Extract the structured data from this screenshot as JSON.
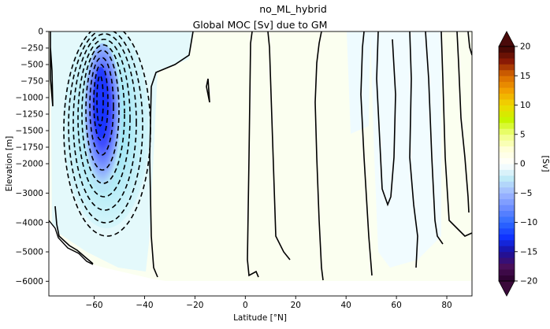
{
  "figure": {
    "suptitle": "no_ML_hybrid"
  },
  "chart_data": {
    "type": "heatmap",
    "title": "Global MOC [Sv] due to GM",
    "xlabel": "Latitude [°N]",
    "ylabel": "Elevation [m]",
    "xlim": [
      -78,
      90
    ],
    "ylim": [
      -6500,
      0
    ],
    "x_ticks": [
      -60,
      -40,
      -20,
      0,
      20,
      40,
      60,
      80
    ],
    "x_tick_labels": [
      "−60",
      "−40",
      "−20",
      "0",
      "20",
      "40",
      "60",
      "80"
    ],
    "y_ticks": [
      0,
      -250,
      -500,
      -750,
      -1000,
      -1250,
      -1500,
      -1750,
      -2000,
      -3000,
      -4000,
      -5000,
      -6000
    ],
    "y_tick_labels": [
      "0",
      "−250",
      "−500",
      "−750",
      "−1000",
      "−1250",
      "−1500",
      "−1750",
      "−2000",
      "−3000",
      "−4000",
      "−5000",
      "−6000"
    ],
    "colorbar": {
      "label": "[Sv]",
      "vmin": -20,
      "vmax": 20,
      "ticks": [
        -20,
        -15,
        -10,
        -5,
        0,
        5,
        10,
        15,
        20
      ],
      "tick_labels": [
        "−20",
        "−15",
        "−10",
        "−5",
        "0",
        "5",
        "10",
        "15",
        "20"
      ],
      "extend": "both"
    },
    "features": {
      "negative_cell": {
        "center_lat": -57,
        "min_value_sv": -17,
        "depth_range_m": [
          -4200,
          -100
        ]
      },
      "contour_style": {
        "negative": "dashed",
        "zero": "solid"
      }
    }
  }
}
